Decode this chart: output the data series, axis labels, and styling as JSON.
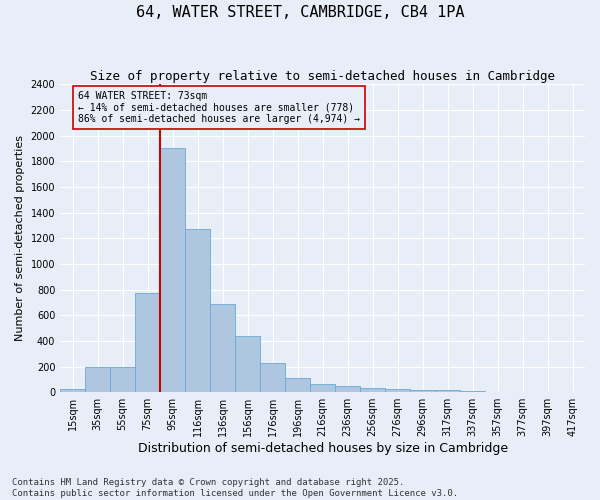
{
  "title": "64, WATER STREET, CAMBRIDGE, CB4 1PA",
  "subtitle": "Size of property relative to semi-detached houses in Cambridge",
  "xlabel": "Distribution of semi-detached houses by size in Cambridge",
  "ylabel": "Number of semi-detached properties",
  "categories": [
    "15sqm",
    "35sqm",
    "55sqm",
    "75sqm",
    "95sqm",
    "116sqm",
    "136sqm",
    "156sqm",
    "176sqm",
    "196sqm",
    "216sqm",
    "236sqm",
    "256sqm",
    "276sqm",
    "296sqm",
    "317sqm",
    "337sqm",
    "357sqm",
    "377sqm",
    "397sqm",
    "417sqm"
  ],
  "values": [
    25,
    200,
    200,
    770,
    1900,
    1275,
    690,
    435,
    230,
    110,
    65,
    45,
    30,
    25,
    20,
    15,
    10,
    5,
    2,
    1,
    0
  ],
  "bar_color": "#aec6e0",
  "bar_edge_color": "#6aaad4",
  "ylim": [
    0,
    2400
  ],
  "yticks": [
    0,
    200,
    400,
    600,
    800,
    1000,
    1200,
    1400,
    1600,
    1800,
    2000,
    2200,
    2400
  ],
  "property_label": "64 WATER STREET: 73sqm",
  "pct_smaller": "14%",
  "count_smaller": "778",
  "pct_larger": "86%",
  "count_larger": "4,974",
  "vline_pos": 3.5,
  "background_color": "#e8eef8",
  "grid_color": "#ffffff",
  "footnote": "Contains HM Land Registry data © Crown copyright and database right 2025.\nContains public sector information licensed under the Open Government Licence v3.0.",
  "title_fontsize": 11,
  "subtitle_fontsize": 9,
  "xlabel_fontsize": 9,
  "ylabel_fontsize": 8,
  "tick_fontsize": 7,
  "footnote_fontsize": 6.5
}
